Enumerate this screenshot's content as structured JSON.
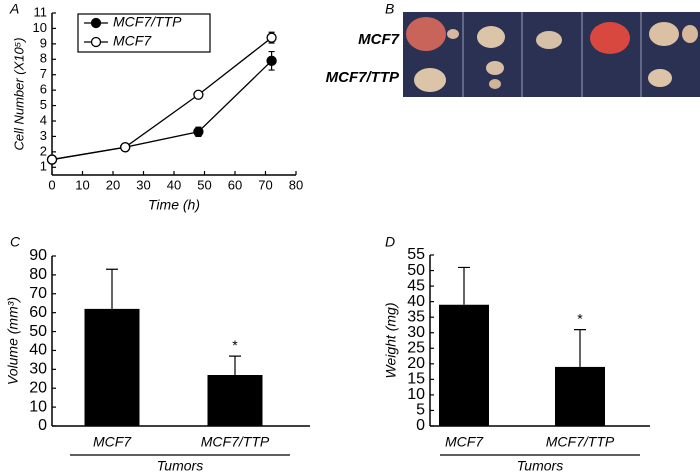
{
  "chart_data": [
    {
      "type": "line",
      "panel": "A",
      "xlabel": "Time (h)",
      "ylabel": "Cell Number (X10⁵)",
      "x": [
        0,
        24,
        48,
        72
      ],
      "series": [
        {
          "name": "MCF7/TTP",
          "marker": "filled",
          "color": "#000000",
          "values": [
            1.5,
            2.3,
            3.3,
            7.9
          ],
          "errors": [
            0.1,
            0.15,
            0.3,
            0.6
          ]
        },
        {
          "name": "MCF7",
          "marker": "open",
          "color": "#000000",
          "values": [
            1.5,
            2.3,
            5.7,
            9.4
          ],
          "errors": [
            0.1,
            0.15,
            0.2,
            0.35
          ]
        }
      ],
      "xlim": [
        0,
        80
      ],
      "xticks": [
        0,
        10,
        20,
        30,
        40,
        50,
        60,
        70,
        80
      ],
      "ylim": [
        0.5,
        11
      ],
      "yticks": [
        1,
        2,
        3,
        4,
        5,
        6,
        7,
        8,
        9,
        10,
        11
      ],
      "legend": "upper left"
    },
    {
      "type": "image",
      "panel": "B",
      "row_labels": [
        "MCF7",
        "MCF7/TTP"
      ]
    },
    {
      "type": "bar",
      "panel": "C",
      "xlabel": "Tumors",
      "ylabel": "Volume (mm³)",
      "categories": [
        "MCF7",
        "MCF7/TTP"
      ],
      "values": [
        62,
        27
      ],
      "errors": [
        21,
        10
      ],
      "annotations": [
        null,
        "*"
      ],
      "color": "#000000",
      "ylim": [
        0,
        90
      ],
      "yticks": [
        0,
        10,
        20,
        30,
        40,
        50,
        60,
        70,
        80,
        90
      ]
    },
    {
      "type": "bar",
      "panel": "D",
      "xlabel": "Tumors",
      "ylabel": "Weight (mg)",
      "categories": [
        "MCF7",
        "MCF7/TTP"
      ],
      "values": [
        39,
        19
      ],
      "errors": [
        12,
        12
      ],
      "annotations": [
        null,
        "*"
      ],
      "color": "#000000",
      "ylim": [
        0,
        55
      ],
      "yticks": [
        0,
        5,
        10,
        15,
        20,
        25,
        30,
        35,
        40,
        45,
        50,
        55
      ]
    }
  ]
}
